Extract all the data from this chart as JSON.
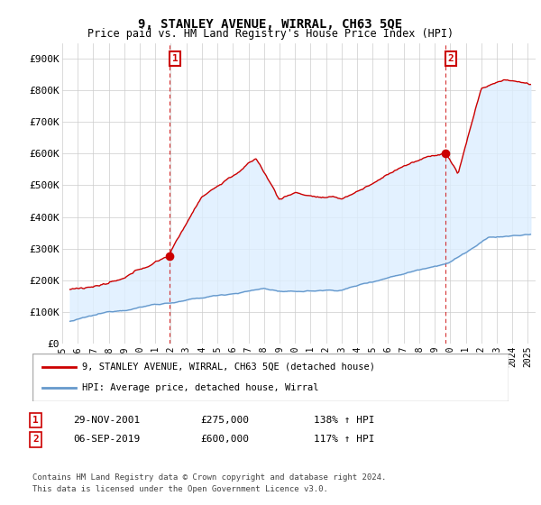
{
  "title": "9, STANLEY AVENUE, WIRRAL, CH63 5QE",
  "subtitle": "Price paid vs. HM Land Registry's House Price Index (HPI)",
  "ylim": [
    0,
    950000
  ],
  "yticks": [
    0,
    100000,
    200000,
    300000,
    400000,
    500000,
    600000,
    700000,
    800000,
    900000
  ],
  "ytick_labels": [
    "£0",
    "£100K",
    "£200K",
    "£300K",
    "£400K",
    "£500K",
    "£600K",
    "£700K",
    "£800K",
    "£900K"
  ],
  "xlim_start": 1995.3,
  "xlim_end": 2025.5,
  "xticks": [
    1995,
    1996,
    1997,
    1998,
    1999,
    2000,
    2001,
    2002,
    2003,
    2004,
    2005,
    2006,
    2007,
    2008,
    2009,
    2010,
    2011,
    2012,
    2013,
    2014,
    2015,
    2016,
    2017,
    2018,
    2019,
    2020,
    2021,
    2022,
    2023,
    2024,
    2025
  ],
  "sale1_x": 2001.91,
  "sale1_y": 275000,
  "sale1_label": "1",
  "sale1_date": "29-NOV-2001",
  "sale1_price": "£275,000",
  "sale1_hpi": "138% ↑ HPI",
  "sale2_x": 2019.68,
  "sale2_y": 600000,
  "sale2_label": "2",
  "sale2_date": "06-SEP-2019",
  "sale2_price": "£600,000",
  "sale2_hpi": "117% ↑ HPI",
  "red_color": "#cc0000",
  "blue_color": "#6699cc",
  "fill_color": "#ddeeff",
  "vline_color": "#cc0000",
  "bg_color": "#ffffff",
  "grid_color": "#cccccc",
  "legend1_label": "9, STANLEY AVENUE, WIRRAL, CH63 5QE (detached house)",
  "legend2_label": "HPI: Average price, detached house, Wirral",
  "footer": "Contains HM Land Registry data © Crown copyright and database right 2024.\nThis data is licensed under the Open Government Licence v3.0."
}
